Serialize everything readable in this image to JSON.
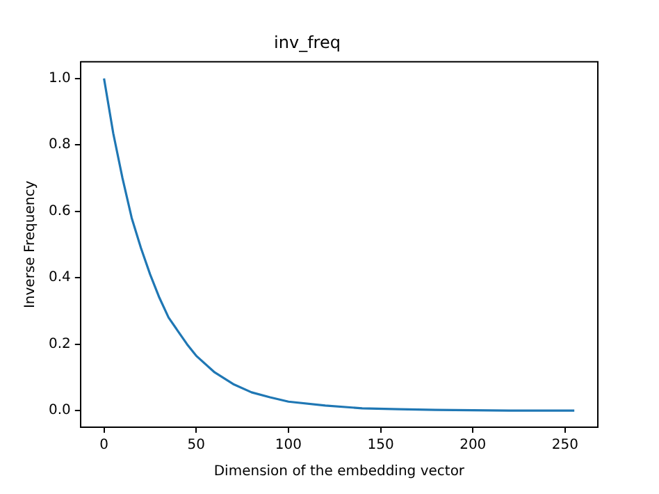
{
  "chart_data": {
    "type": "line",
    "title": "inv_freq",
    "xlabel": "Dimension of the embedding vector",
    "ylabel": "Inverse Frequency",
    "x": [
      0,
      5,
      10,
      15,
      20,
      25,
      30,
      35,
      40,
      45,
      50,
      60,
      70,
      80,
      90,
      100,
      120,
      140,
      160,
      180,
      200,
      220,
      240,
      255
    ],
    "series": [
      {
        "color": "#1f77b4",
        "values": [
          1.0,
          0.835,
          0.7,
          0.58,
          0.49,
          0.41,
          0.34,
          0.28,
          0.24,
          0.2,
          0.165,
          0.115,
          0.08,
          0.055,
          0.04,
          0.027,
          0.015,
          0.007,
          0.004,
          0.002,
          0.001,
          0.0,
          0.0,
          0.0
        ]
      }
    ],
    "xlim": [
      -12.75,
      267.75
    ],
    "xticks": [
      0,
      50,
      100,
      150,
      200,
      250
    ],
    "ylim": [
      -0.05,
      1.05
    ],
    "yticks": [
      {
        "value": 0,
        "label": "0.0"
      },
      {
        "value": 0.2,
        "label": "0.2"
      },
      {
        "value": 0.4,
        "label": "0.4"
      },
      {
        "value": 0.6,
        "label": "0.6"
      },
      {
        "value": 0.8,
        "label": "0.8"
      },
      {
        "value": 1,
        "label": "1.0"
      }
    ],
    "grid": false,
    "legend": false
  }
}
